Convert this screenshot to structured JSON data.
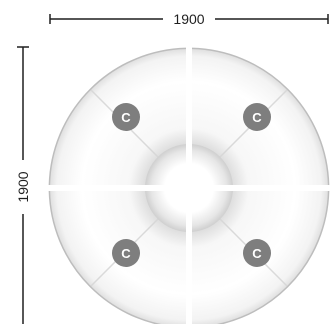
{
  "dimensions": {
    "width_label": "1900",
    "height_label": "1900"
  },
  "segments": [
    {
      "id": "top-left",
      "label": "C"
    },
    {
      "id": "top-right",
      "label": "C"
    },
    {
      "id": "bottom-left",
      "label": "C"
    },
    {
      "id": "bottom-right",
      "label": "C"
    }
  ],
  "colors": {
    "badge": "#7e7e7e",
    "dimension_line": "#1f1f1f",
    "seat_edge": "#bdbdbd"
  }
}
